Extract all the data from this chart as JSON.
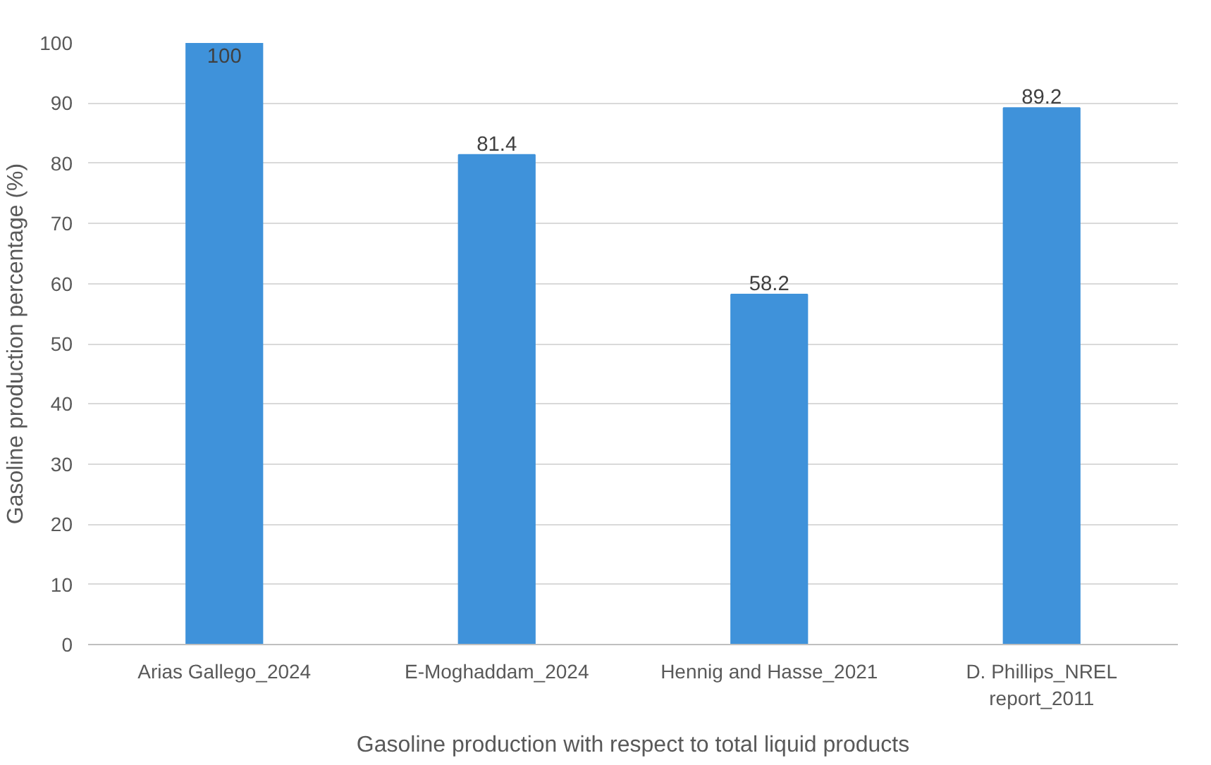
{
  "chart_data": {
    "type": "bar",
    "xlabel": "Gasoline production with respect to total liquid products",
    "ylabel": "Gasoline production percentage (%)",
    "categories": [
      "Arias Gallego_2024",
      "E-Moghaddam_2024",
      "Hennig and Hasse_2021",
      "D. Phillips_NREL\nreport_2011"
    ],
    "values": [
      100,
      81.4,
      58.2,
      89.2
    ],
    "color": "#3f92da",
    "ylim": [
      0,
      100
    ],
    "yticks": [
      0,
      10,
      20,
      30,
      40,
      50,
      60,
      70,
      80,
      90,
      100
    ],
    "grid": "y",
    "data_labels": true
  }
}
